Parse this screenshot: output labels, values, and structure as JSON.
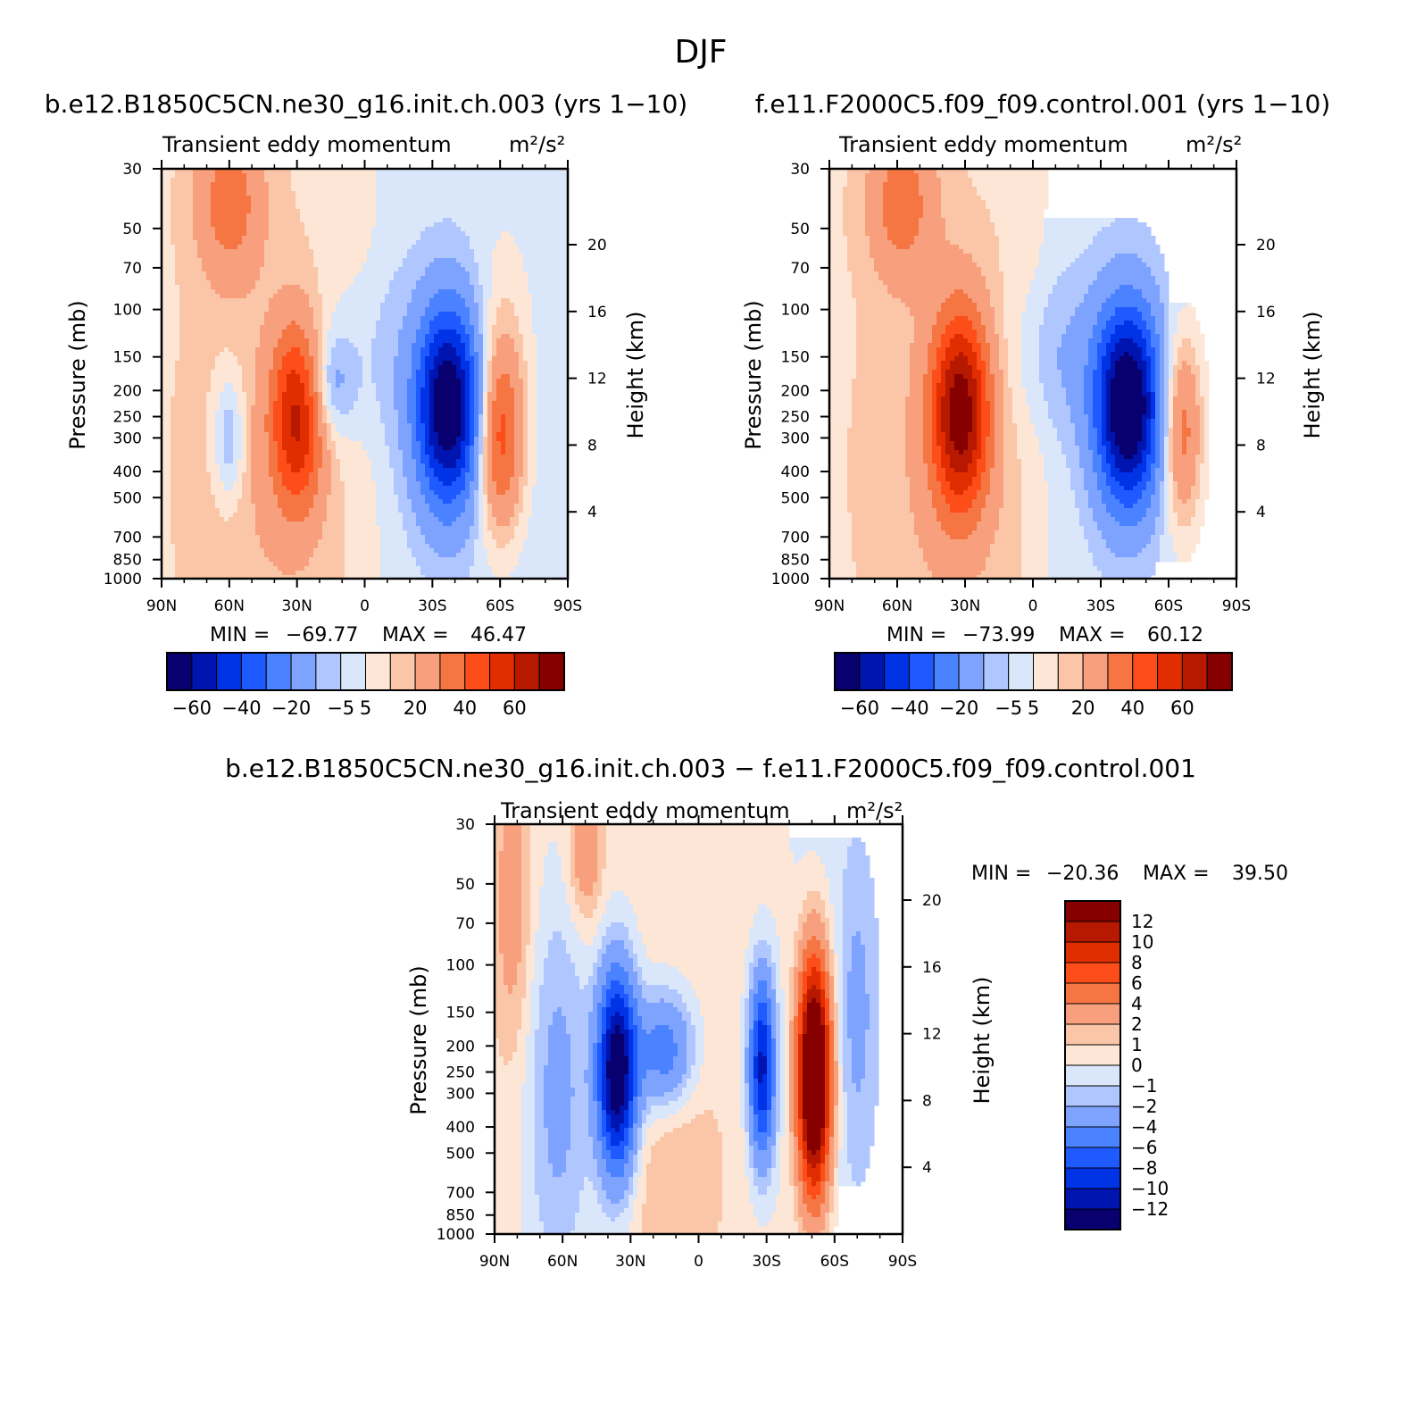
{
  "figure_title": "DJF",
  "chart_data": [
    {
      "type": "heatmap",
      "case_title": "b.e12.B1850C5CN.ne30_g16.init.ch.003 (yrs 1−10)",
      "subtitle": "Transient eddy momentum",
      "units_text": "m²/s²",
      "xlabel": "",
      "ylabel": "Pressure (mb)",
      "ylabel_right": "Height (km)",
      "x_ticks": [
        "90N",
        "60N",
        "30N",
        "0",
        "30S",
        "60S",
        "90S"
      ],
      "xlim": [
        90,
        -90
      ],
      "y_ticks": [
        "30",
        "50",
        "70",
        "100",
        "150",
        "200",
        "250",
        "300",
        "400",
        "500",
        "700",
        "850",
        "1000"
      ],
      "ylim": [
        1000,
        30
      ],
      "y_ticks_right": [
        "20",
        "16",
        "12",
        "8",
        "4"
      ],
      "min_label": "MIN =",
      "min_value": "−69.77",
      "max_label": "MAX =",
      "max_value": "46.47",
      "levels": [
        -70,
        -60,
        -50,
        -40,
        -30,
        -20,
        -10,
        -5,
        0,
        5,
        10,
        20,
        30,
        40,
        50,
        60
      ],
      "colorbar_tick_labels": [
        "−60",
        "−40",
        "−20",
        "−5",
        "5",
        "20",
        "40",
        "60"
      ],
      "features": [
        {
          "lat": 30,
          "p": 250,
          "value": 46,
          "sx": 8,
          "sz": 0.55
        },
        {
          "lat": -37,
          "p": 230,
          "value": -70,
          "sx": 10,
          "sz": 0.6
        },
        {
          "lat": -60,
          "p": 300,
          "value": 36,
          "sx": 7,
          "sz": 0.55
        },
        {
          "lat": 60,
          "p": 40,
          "value": 22,
          "sx": 10,
          "sz": 0.45
        },
        {
          "lat": 15,
          "p": 190,
          "value": -14,
          "sx": 7,
          "sz": 0.3
        },
        {
          "lat": 45,
          "p": 400,
          "value": 6,
          "sx": 22,
          "sz": 1.2
        },
        {
          "lat": 60,
          "p": 300,
          "value": -16,
          "sx": 5,
          "sz": 0.4
        },
        {
          "lat": 5,
          "p": 150,
          "value": -7,
          "sx": 18,
          "sz": 0.6
        },
        {
          "lat": -62,
          "p": 120,
          "value": 6,
          "sx": 9,
          "sz": 0.7
        }
      ],
      "background": {
        "north_value": 4,
        "south_value": -3,
        "boundary_lat": -5
      }
    },
    {
      "type": "heatmap",
      "case_title": "f.e11.F2000C5.f09_f09.control.001 (yrs 1−10)",
      "subtitle": "Transient eddy momentum",
      "units_text": "m²/s²",
      "xlabel": "",
      "ylabel": "Pressure (mb)",
      "ylabel_right": "Height (km)",
      "x_ticks": [
        "90N",
        "60N",
        "30N",
        "0",
        "30S",
        "60S",
        "90S"
      ],
      "xlim": [
        90,
        -90
      ],
      "y_ticks": [
        "30",
        "50",
        "70",
        "100",
        "150",
        "200",
        "250",
        "300",
        "400",
        "500",
        "700",
        "850",
        "1000"
      ],
      "ylim": [
        1000,
        30
      ],
      "y_ticks_right": [
        "20",
        "16",
        "12",
        "8",
        "4"
      ],
      "min_label": "MIN =",
      "min_value": "−73.99",
      "max_label": "MAX =",
      "max_value": "60.12",
      "levels": [
        -70,
        -60,
        -50,
        -40,
        -30,
        -20,
        -10,
        -5,
        0,
        5,
        10,
        20,
        30,
        40,
        50,
        60
      ],
      "colorbar_tick_labels": [
        "−60",
        "−40",
        "−20",
        "−5",
        "5",
        "20",
        "40",
        "60"
      ],
      "features": [
        {
          "lat": 32,
          "p": 240,
          "value": 60,
          "sx": 9,
          "sz": 0.6
        },
        {
          "lat": -42,
          "p": 230,
          "value": -74,
          "sx": 10,
          "sz": 0.6
        },
        {
          "lat": -66,
          "p": 280,
          "value": 28,
          "sx": 6,
          "sz": 0.55
        },
        {
          "lat": 58,
          "p": 40,
          "value": 22,
          "sx": 10,
          "sz": 0.45
        },
        {
          "lat": 40,
          "p": 400,
          "value": 6,
          "sx": 22,
          "sz": 1.2
        },
        {
          "lat": -10,
          "p": 150,
          "value": -8,
          "sx": 18,
          "sz": 0.5
        }
      ],
      "background": {
        "north_value": 4,
        "south_value": -3,
        "boundary_lat": -5
      }
    },
    {
      "type": "heatmap",
      "case_title": "b.e12.B1850C5CN.ne30_g16.init.ch.003 − f.e11.F2000C5.f09_f09.control.001",
      "subtitle": "Transient eddy momentum",
      "units_text": "m²/s²",
      "xlabel": "",
      "ylabel": "Pressure (mb)",
      "ylabel_right": "Height (km)",
      "x_ticks": [
        "90N",
        "60N",
        "30N",
        "0",
        "30S",
        "60S",
        "90S"
      ],
      "xlim": [
        90,
        -90
      ],
      "y_ticks": [
        "30",
        "50",
        "70",
        "100",
        "150",
        "200",
        "250",
        "300",
        "400",
        "500",
        "700",
        "850",
        "1000"
      ],
      "ylim": [
        1000,
        30
      ],
      "y_ticks_right": [
        "20",
        "16",
        "12",
        "8",
        "4"
      ],
      "min_label": "MIN =",
      "min_value": "−20.36",
      "max_label": "MAX =",
      "max_value": "39.50",
      "levels": [
        -14,
        -12,
        -10,
        -8,
        -6,
        -4,
        -2,
        -1,
        0,
        1,
        2,
        4,
        6,
        8,
        10,
        12
      ],
      "colorbar_tick_labels": [
        "12",
        "10",
        "8",
        "6",
        "4",
        "2",
        "1",
        "0",
        "−1",
        "−2",
        "−4",
        "−6",
        "−8",
        "−10",
        "−12"
      ],
      "features": [
        {
          "lat": 36,
          "p": 250,
          "value": -15,
          "sx": 6,
          "sz": 0.6
        },
        {
          "lat": -51,
          "p": 260,
          "value": 20,
          "sx": 5,
          "sz": 0.7
        },
        {
          "lat": -28,
          "p": 240,
          "value": -11,
          "sx": 4,
          "sz": 0.55
        },
        {
          "lat": 15,
          "p": 210,
          "value": -6,
          "sx": 9,
          "sz": 0.35
        },
        {
          "lat": 50,
          "p": 40,
          "value": 3,
          "sx": 5,
          "sz": 0.4
        },
        {
          "lat": 82,
          "p": 60,
          "value": 2.5,
          "sx": 6,
          "sz": 0.9
        },
        {
          "lat": 62,
          "p": 300,
          "value": -3,
          "sx": 10,
          "sz": 1.2
        },
        {
          "lat": -70,
          "p": 150,
          "value": -2,
          "sx": 6,
          "sz": 0.9
        },
        {
          "lat": 10,
          "p": 600,
          "value": 1.5,
          "sx": 14,
          "sz": 0.8
        }
      ],
      "background": {
        "north_value": 0.5,
        "south_value": -0.5,
        "boundary_lat": -40
      }
    }
  ]
}
